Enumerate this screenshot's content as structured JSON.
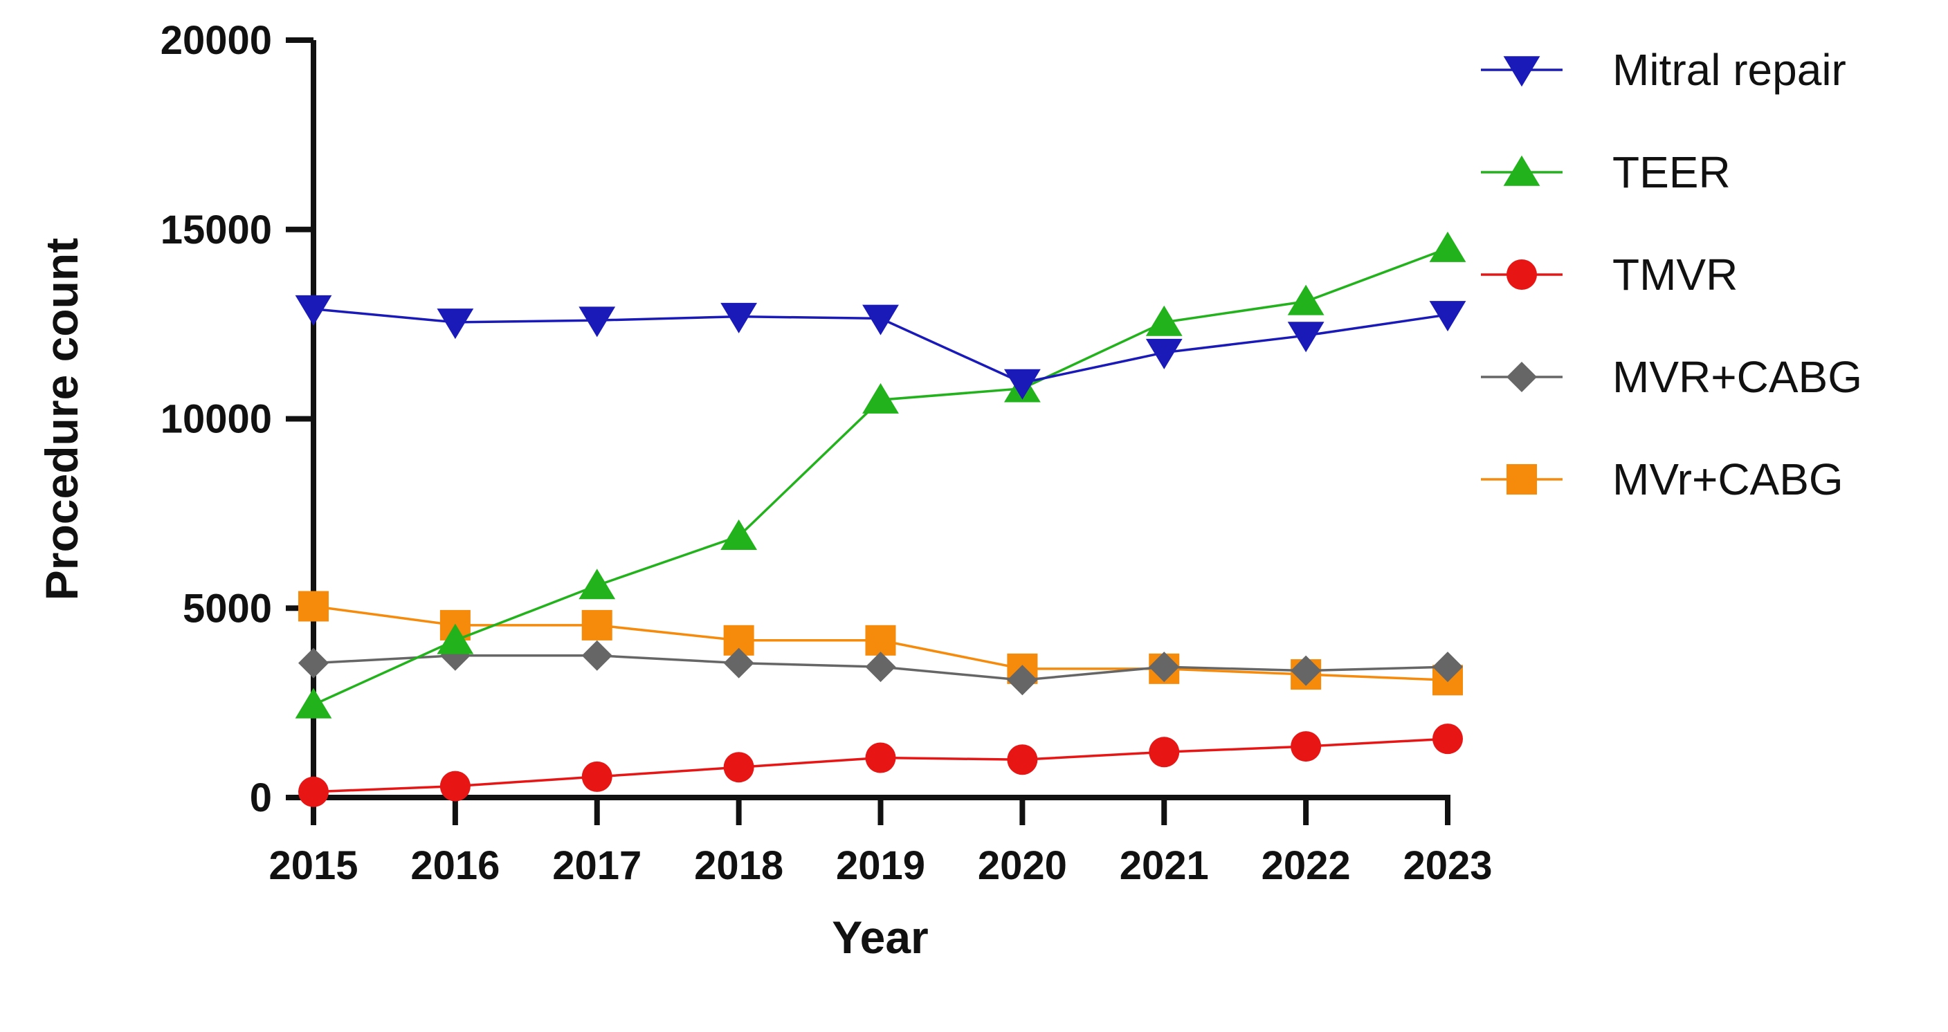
{
  "chart_data": {
    "type": "line",
    "xlabel": "Year",
    "ylabel": "Procedure count",
    "x": [
      "2015",
      "2016",
      "2017",
      "2018",
      "2019",
      "2020",
      "2021",
      "2022",
      "2023"
    ],
    "ylim": [
      0,
      20000
    ],
    "yticks": [
      "0",
      "5000",
      "10000",
      "15000",
      "20000"
    ],
    "grid": false,
    "legend_position": "top-right",
    "series": [
      {
        "name": "Mitral repair",
        "marker": "triangle-down",
        "color": "#1a1ab8",
        "values": [
          12900,
          12550,
          12600,
          12700,
          12650,
          10950,
          11750,
          12200,
          12750
        ]
      },
      {
        "name": "TEER",
        "marker": "triangle-up",
        "color": "#22b21c",
        "values": [
          2450,
          4150,
          5600,
          6900,
          10500,
          10800,
          12550,
          13100,
          14500
        ]
      },
      {
        "name": "TMVR",
        "marker": "circle",
        "color": "#e81515",
        "values": [
          150,
          300,
          550,
          800,
          1050,
          1000,
          1200,
          1350,
          1550
        ]
      },
      {
        "name": "MVR+CABG",
        "marker": "diamond",
        "color": "#666666",
        "values": [
          3550,
          3750,
          3750,
          3550,
          3450,
          3100,
          3450,
          3350,
          3450
        ]
      },
      {
        "name": "MVr+CABG",
        "marker": "square",
        "color": "#f58a0b",
        "values": [
          5050,
          4550,
          4550,
          4150,
          4150,
          3400,
          3400,
          3250,
          3100
        ]
      }
    ]
  }
}
